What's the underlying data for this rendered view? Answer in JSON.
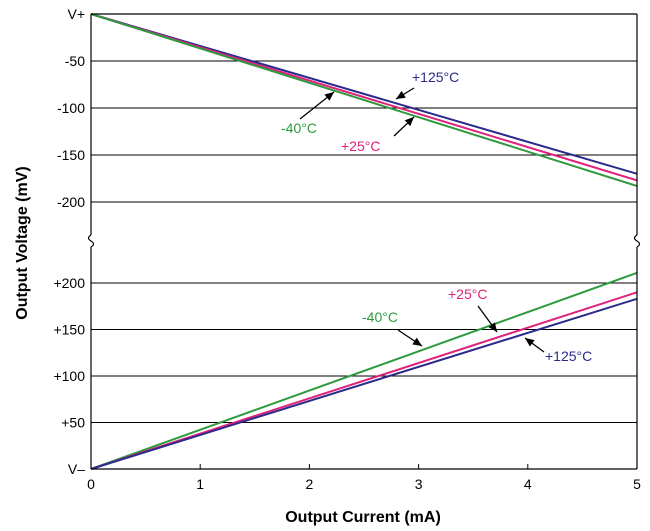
{
  "chart_data": {
    "type": "line",
    "xlabel": "Output Current (mA)",
    "ylabel": "Output Voltage (mV)",
    "x_ticks": [
      "0",
      "1",
      "2",
      "3",
      "4",
      "5"
    ],
    "xlim": [
      0,
      5
    ],
    "grid": true,
    "panels": [
      {
        "name": "upper",
        "y_ticks": [
          "V+",
          "-50",
          "-100",
          "-150",
          "-200"
        ],
        "ylim": [
          -200,
          0
        ],
        "series": [
          {
            "name": "+125°C",
            "color": "#2a2a8c",
            "x": [
              0,
              5
            ],
            "y": [
              0,
              -170
            ]
          },
          {
            "name": "+25°C",
            "color": "#e0217b",
            "x": [
              0,
              5
            ],
            "y": [
              0,
              -177
            ]
          },
          {
            "name": "-40°C",
            "color": "#2e9a3e",
            "x": [
              0,
              5
            ],
            "y": [
              0,
              -183
            ]
          }
        ],
        "annotations": [
          {
            "text": "+125°C",
            "color": "#2a2a8c"
          },
          {
            "text": "+25°C",
            "color": "#e0217b"
          },
          {
            "text": "-40°C",
            "color": "#2e9a3e"
          }
        ]
      },
      {
        "name": "lower",
        "y_ticks": [
          "V–",
          "+50",
          "+100",
          "+150",
          "+200"
        ],
        "ylim": [
          0,
          200
        ],
        "series": [
          {
            "name": "-40°C",
            "color": "#2e9a3e",
            "x": [
              0,
              5
            ],
            "y": [
              0,
              211
            ]
          },
          {
            "name": "+25°C",
            "color": "#e0217b",
            "x": [
              0,
              5
            ],
            "y": [
              0,
              190
            ]
          },
          {
            "name": "+125°C",
            "color": "#2a2a8c",
            "x": [
              0,
              5
            ],
            "y": [
              0,
              183
            ]
          }
        ],
        "annotations": [
          {
            "text": "-40°C",
            "color": "#2e9a3e"
          },
          {
            "text": "+25°C",
            "color": "#e0217b"
          },
          {
            "text": "+125°C",
            "color": "#2a2a8c"
          }
        ]
      }
    ]
  }
}
